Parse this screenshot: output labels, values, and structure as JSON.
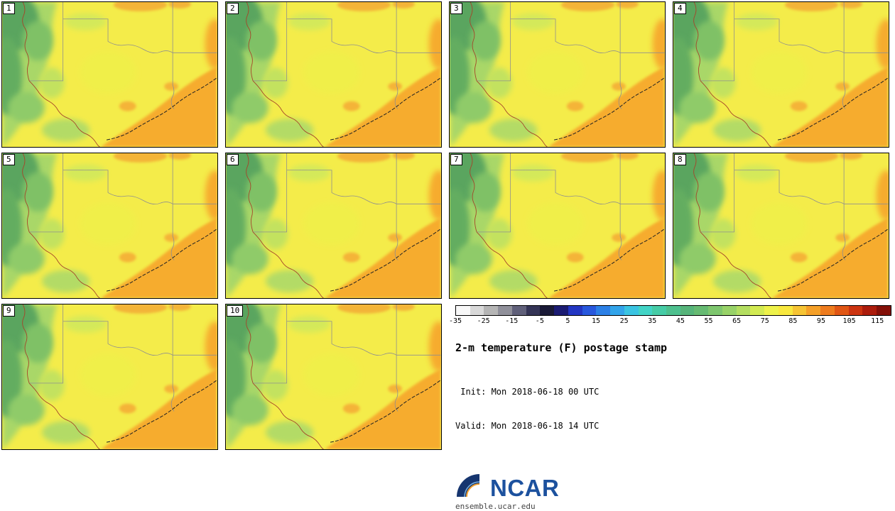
{
  "panels": [
    {
      "label": "1"
    },
    {
      "label": "2"
    },
    {
      "label": "3"
    },
    {
      "label": "4"
    },
    {
      "label": "5"
    },
    {
      "label": "6"
    },
    {
      "label": "7"
    },
    {
      "label": "8"
    },
    {
      "label": "9"
    },
    {
      "label": "10"
    }
  ],
  "colorbar": {
    "min": -35,
    "max": 120,
    "ticks": [
      -35,
      -25,
      -15,
      -5,
      5,
      15,
      25,
      35,
      45,
      55,
      65,
      75,
      85,
      95,
      105,
      115
    ],
    "colors": [
      "#f8f8f8",
      "#d9d9d9",
      "#b5b5b5",
      "#90909a",
      "#60607a",
      "#343456",
      "#191936",
      "#1b1b72",
      "#2336c2",
      "#2858dd",
      "#2c80e6",
      "#32a4ea",
      "#3ac4e2",
      "#42d4c6",
      "#46cca6",
      "#4ec08e",
      "#56b47a",
      "#66ba72",
      "#7ec66e",
      "#98d268",
      "#b4de60",
      "#d2ea52",
      "#eef24a",
      "#f8e83e",
      "#f6c434",
      "#f5a028",
      "#ee7c1e",
      "#e05614",
      "#cc3410",
      "#ac1c0c",
      "#841008"
    ]
  },
  "info": {
    "title": "2-m temperature (F) postage stamp",
    "init": " Init: Mon 2018-06-18 00 UTC",
    "valid": "Valid: Mon 2018-06-18 14 UTC"
  },
  "logo": {
    "wordmark": "NCAR",
    "site": "ensemble.ucar.edu"
  },
  "map_colors": {
    "yellow": "#f4ec4a",
    "light_green": "#a9d768",
    "green": "#7fc166",
    "dark_green": "#5aa55e",
    "orange": "#f6ac2f",
    "state_border_gray": "#8f8f8f",
    "river_red": "#a5462a",
    "coast_black": "#222222"
  }
}
